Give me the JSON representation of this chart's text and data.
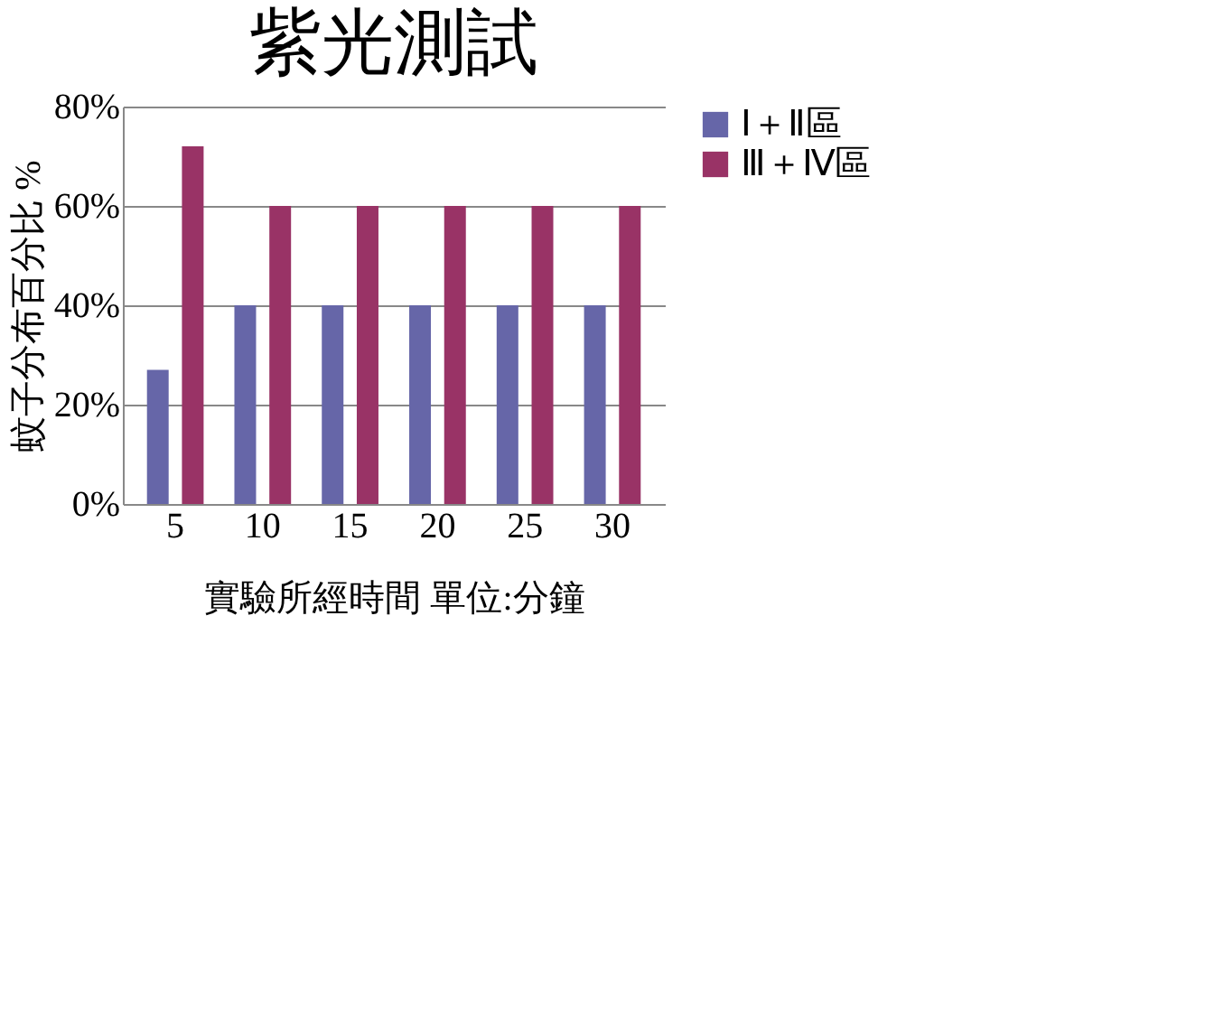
{
  "chart_data": {
    "type": "bar",
    "title": "紫光測試",
    "xlabel": "實驗所經時間  單位:分鐘",
    "ylabel": "蚊子分布百分比 %",
    "categories": [
      "5",
      "10",
      "15",
      "20",
      "25",
      "30"
    ],
    "series": [
      {
        "name": "Ⅰ＋Ⅱ區",
        "color": "#6666a8",
        "values": [
          27,
          40,
          40,
          40,
          40,
          40
        ]
      },
      {
        "name": "Ⅲ＋Ⅳ區",
        "color": "#993366",
        "values": [
          72,
          60,
          60,
          60,
          60,
          60
        ]
      }
    ],
    "ylim": [
      0,
      80
    ],
    "yticks": [
      {
        "value": 0,
        "label": "0%"
      },
      {
        "value": 20,
        "label": "20%"
      },
      {
        "value": 40,
        "label": "40%"
      },
      {
        "value": 60,
        "label": "60%"
      },
      {
        "value": 80,
        "label": "80%"
      }
    ],
    "grid": "y",
    "legend": "right"
  }
}
